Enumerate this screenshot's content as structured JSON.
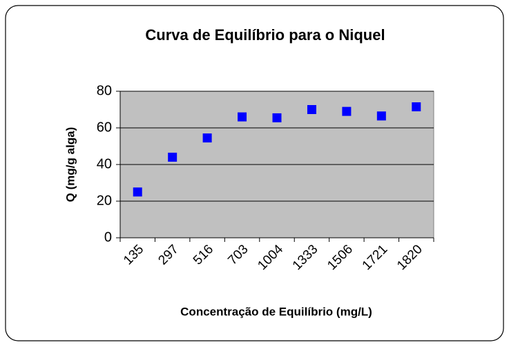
{
  "chart_data": {
    "type": "scatter",
    "title": "Curva de Equilíbrio para o Niquel",
    "x_label": "Concentração de Equilíbrio (mg/L)",
    "y_label": "Q (mg/g alga)",
    "categories": [
      "135",
      "297",
      "516",
      "703",
      "1004",
      "1333",
      "1506",
      "1721",
      "1820"
    ],
    "values": [
      25,
      44,
      54.5,
      66,
      65.5,
      70,
      69,
      66.5,
      71.5
    ],
    "color": "#0000ff",
    "ylim": [
      0,
      80
    ],
    "yticks": [
      0,
      20,
      40,
      60,
      80
    ],
    "grid": true
  }
}
